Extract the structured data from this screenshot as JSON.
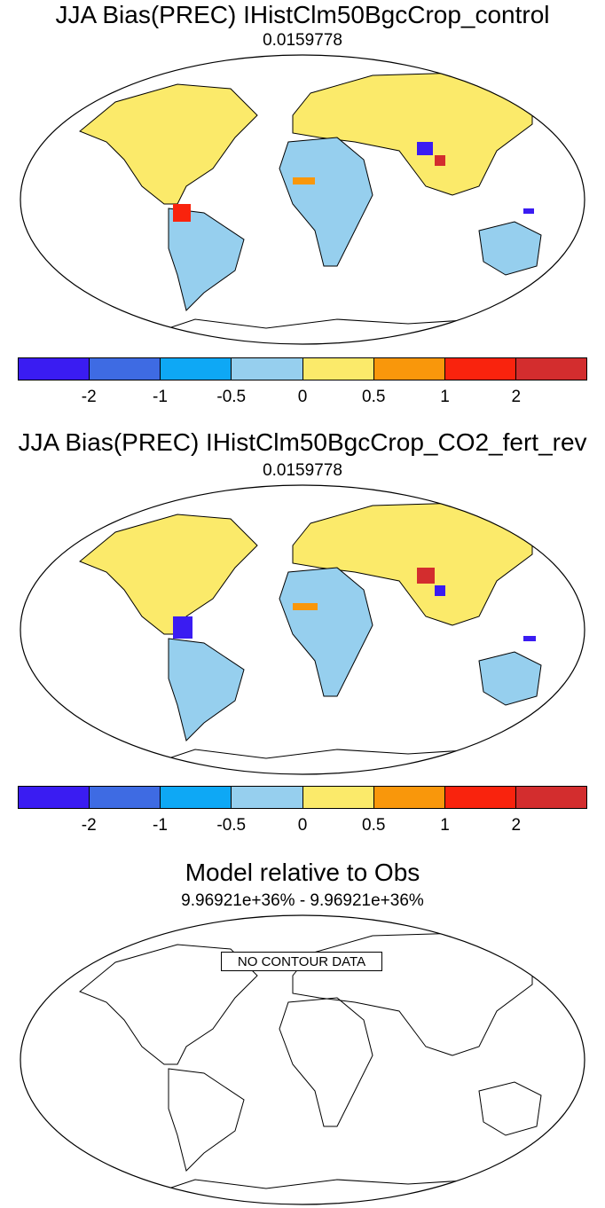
{
  "panels": [
    {
      "title": "JJA Bias(PREC) IHistClm50BgcCrop_control",
      "subtitle": "0.0159778"
    },
    {
      "title": "JJA Bias(PREC) IHistClm50BgcCrop_CO2_fert_rev",
      "subtitle": "0.0159778"
    },
    {
      "title": "Model relative to Obs",
      "subtitle": "9.96921e+36% - 9.96921e+36%",
      "message": "NO CONTOUR DATA"
    }
  ],
  "colorbar": {
    "colors": [
      "#3a1cf2",
      "#3e6be3",
      "#0ea8f5",
      "#96cfee",
      "#fbea6a",
      "#f9970b",
      "#f9230d",
      "#d32d2e"
    ],
    "labels": [
      "-2",
      "-1",
      "-0.5",
      "0",
      "0.5",
      "1",
      "2"
    ]
  },
  "colors": {
    "land_fill_dominant": "#96cfee",
    "positive_bias": "#fbea6a",
    "coastline": "#000000"
  }
}
